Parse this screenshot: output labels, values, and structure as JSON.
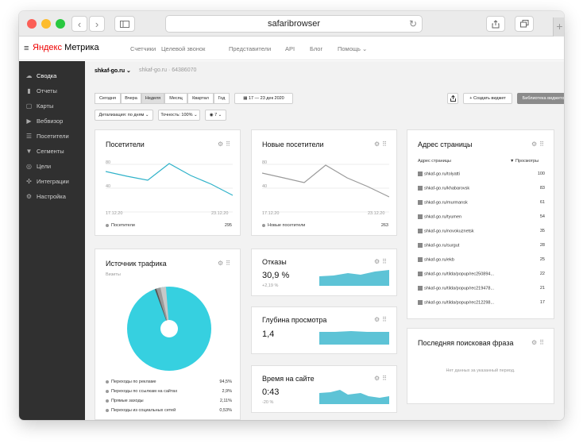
{
  "browser": {
    "url": "safaribrowser",
    "back": "‹",
    "forward": "›"
  },
  "topnav": {
    "logo_yandex": "Яндекс",
    "logo_metrika": "Метрика",
    "items": [
      "Счетчики",
      "Целевой звонок",
      "Представители",
      "API",
      "Блог",
      "Помощь ⌄"
    ]
  },
  "sidebar": {
    "items": [
      {
        "label": "Сводка",
        "icon": "☁"
      },
      {
        "label": "Отчеты",
        "icon": "▮"
      },
      {
        "label": "Карты",
        "icon": "▢"
      },
      {
        "label": "Вебвизор",
        "icon": "▶"
      },
      {
        "label": "Посетители",
        "icon": "☰"
      },
      {
        "label": "Сегменты",
        "icon": "▼"
      },
      {
        "label": "Цели",
        "icon": "◎"
      },
      {
        "label": "Интеграции",
        "icon": "✣"
      },
      {
        "label": "Настройка",
        "icon": "⚙"
      }
    ]
  },
  "sitebar": {
    "site": "shkaf-go.ru ⌄",
    "site2": "shkaf-go.ru · 64386070"
  },
  "periods": [
    "Сегодня",
    "Вчера",
    "Неделя",
    "Месяц",
    "Квартал",
    "Год"
  ],
  "date_range": "17 — 23 дек 2020",
  "detail_select": "Детализация: по дням ⌄",
  "accuracy_select": "Точность: 100% ⌄",
  "segments_select": "7 ⌄",
  "create_widget": "+ Создать виджет",
  "widget_library": "Библиотека виджетов",
  "visitors": {
    "title": "Посетители",
    "y_top": "80",
    "y_mid": "40",
    "x_start": "17.12.20",
    "x_end": "23.12.20",
    "legend": "Посетители",
    "total": "295",
    "color": "#2fb2c9"
  },
  "new_visitors": {
    "title": "Новые посетители",
    "y_top": "80",
    "y_mid": "40",
    "x_start": "17.12.20",
    "x_end": "23.12.20",
    "legend": "Новые посетители",
    "total": "263"
  },
  "traffic": {
    "title": "Источник трафика",
    "subtitle": "Визиты",
    "rows": [
      {
        "label": "Переходы по рекламе",
        "value": "94,5%"
      },
      {
        "label": "Переходы по ссылкам на сайтах",
        "value": "2,9%"
      },
      {
        "label": "Прямые заходы",
        "value": "2,11%"
      },
      {
        "label": "Переходы из социальных сетей",
        "value": "0,53%"
      }
    ]
  },
  "bounces": {
    "title": "Отказы",
    "value": "30,9 %",
    "delta": "+2,19 %"
  },
  "depth": {
    "title": "Глубина просмотра",
    "value": "1,4"
  },
  "time_on_site": {
    "title": "Время на сайте",
    "value": "0:43",
    "delta": "-20 %"
  },
  "pages": {
    "title": "Адрес страницы",
    "col_page": "Адрес страницы",
    "col_views": "▼ Просмотры",
    "rows": [
      {
        "url": "shkaf-go.ru/tolyatti",
        "views": "100"
      },
      {
        "url": "shkaf-go.ru/khabarovsk",
        "views": "83"
      },
      {
        "url": "shkaf-go.ru/murmansk",
        "views": "61"
      },
      {
        "url": "shkaf-go.ru/tyumen",
        "views": "54"
      },
      {
        "url": "shkaf-go.ru/novokuznetsk",
        "views": "35"
      },
      {
        "url": "shkaf-go.ru/surgut",
        "views": "28"
      },
      {
        "url": "shkaf-go.ru/ekb",
        "views": "25"
      },
      {
        "url": "shkaf-go.ru/tilda/popup/rec250894...",
        "views": "22"
      },
      {
        "url": "shkaf-go.ru/tilda/popup/rec219478...",
        "views": "21"
      },
      {
        "url": "shkaf-go.ru/tilda/popup/rec212298...",
        "views": "17"
      }
    ]
  },
  "search_phrase": {
    "title": "Последняя поисковая фраза",
    "empty": "Нет данных за указанный период."
  }
}
